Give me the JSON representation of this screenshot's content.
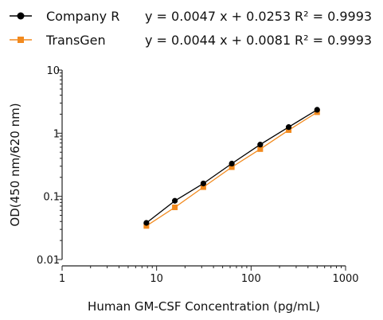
{
  "chart_data": {
    "type": "line",
    "xscale": "log",
    "yscale": "log",
    "xlim": [
      1,
      1000
    ],
    "ylim": [
      0.01,
      10
    ],
    "x_ticks": [
      1,
      10,
      100,
      1000
    ],
    "x_tick_labels": [
      "1",
      "10",
      "100",
      "1000"
    ],
    "y_ticks": [
      0.01,
      0.1,
      1,
      10
    ],
    "y_tick_labels": [
      "0.01",
      "0.1",
      "1",
      "10"
    ],
    "xlabel": "Human GM-CSF Concentration (pg/mL)",
    "ylabel": "OD(450 nm/620 nm)",
    "title": "",
    "legend_position": "top",
    "grid": false,
    "x": [
      7.8,
      15.6,
      31.25,
      62.5,
      125,
      250,
      500
    ],
    "series": [
      {
        "name": "Company R",
        "equation": "y = 0.0047 x + 0.0253",
        "r2": "R² = 0.9993",
        "marker": "circle",
        "color": "#000000",
        "values": [
          0.038,
          0.085,
          0.16,
          0.33,
          0.66,
          1.25,
          2.35
        ]
      },
      {
        "name": "TransGen",
        "equation": "y = 0.0044 x + 0.0081",
        "r2": "R² = 0.9993",
        "marker": "square",
        "color": "#f28a1e",
        "values": [
          0.034,
          0.067,
          0.14,
          0.29,
          0.56,
          1.12,
          2.15
        ]
      }
    ]
  }
}
